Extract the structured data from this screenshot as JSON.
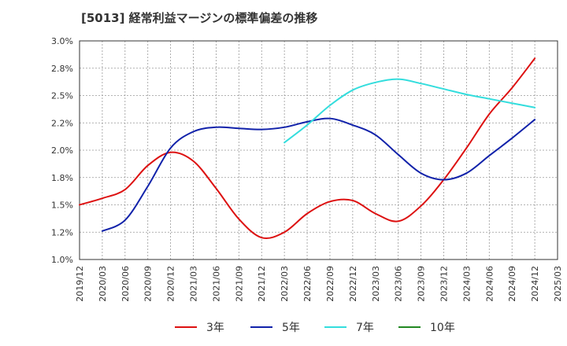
{
  "chart_data": {
    "type": "line",
    "title": "[5013]  経常利益マージンの標準偏差の推移",
    "xlabel": "",
    "ylabel": "",
    "ylim": [
      1.0,
      3.0
    ],
    "yticks": [
      "1.0%",
      "1.2%",
      "1.5%",
      "1.8%",
      "2.0%",
      "2.2%",
      "2.5%",
      "2.8%",
      "3.0%"
    ],
    "ytick_values": [
      1.0,
      1.25,
      1.5,
      1.75,
      2.0,
      2.25,
      2.5,
      2.75,
      3.0
    ],
    "xticks": [
      "2019/12",
      "2020/03",
      "2020/06",
      "2020/09",
      "2020/12",
      "2021/03",
      "2021/06",
      "2021/09",
      "2021/12",
      "2022/03",
      "2022/06",
      "2022/09",
      "2022/12",
      "2023/03",
      "2023/06",
      "2023/09",
      "2023/12",
      "2024/03",
      "2024/06",
      "2024/09",
      "2024/12",
      "2025/03"
    ],
    "grid": true,
    "legend_position": "bottom",
    "series": [
      {
        "name": "3年",
        "color": "#dd1111",
        "x": [
          "2019/12",
          "2020/03",
          "2020/06",
          "2020/09",
          "2020/12",
          "2021/03",
          "2021/06",
          "2021/09",
          "2021/12",
          "2022/03",
          "2022/06",
          "2022/09",
          "2022/12",
          "2023/03",
          "2023/06",
          "2023/09",
          "2023/12",
          "2024/03",
          "2024/06",
          "2024/09",
          "2024/12"
        ],
        "values": [
          1.5,
          1.56,
          1.64,
          1.86,
          1.98,
          1.9,
          1.65,
          1.37,
          1.2,
          1.25,
          1.42,
          1.53,
          1.54,
          1.42,
          1.35,
          1.49,
          1.73,
          2.02,
          2.33,
          2.57,
          2.84
        ]
      },
      {
        "name": "5年",
        "color": "#1122aa",
        "x": [
          "2020/03",
          "2020/06",
          "2020/09",
          "2020/12",
          "2021/03",
          "2021/06",
          "2021/09",
          "2021/12",
          "2022/03",
          "2022/06",
          "2022/09",
          "2022/12",
          "2023/03",
          "2023/06",
          "2023/09",
          "2023/12",
          "2024/03",
          "2024/06",
          "2024/09",
          "2024/12"
        ],
        "values": [
          1.26,
          1.36,
          1.67,
          2.02,
          2.17,
          2.21,
          2.2,
          2.19,
          2.21,
          2.26,
          2.29,
          2.23,
          2.14,
          1.96,
          1.79,
          1.73,
          1.79,
          1.95,
          2.11,
          2.28
        ]
      },
      {
        "name": "7年",
        "color": "#33dddd",
        "x": [
          "2022/03",
          "2022/06",
          "2022/09",
          "2022/12",
          "2023/03",
          "2023/06",
          "2023/09",
          "2023/12",
          "2024/03",
          "2024/06",
          "2024/09",
          "2024/12"
        ],
        "values": [
          2.07,
          2.23,
          2.41,
          2.55,
          2.62,
          2.65,
          2.61,
          2.56,
          2.51,
          2.47,
          2.43,
          2.39
        ]
      },
      {
        "name": "10年",
        "color": "#228822",
        "x": [],
        "values": []
      }
    ]
  }
}
